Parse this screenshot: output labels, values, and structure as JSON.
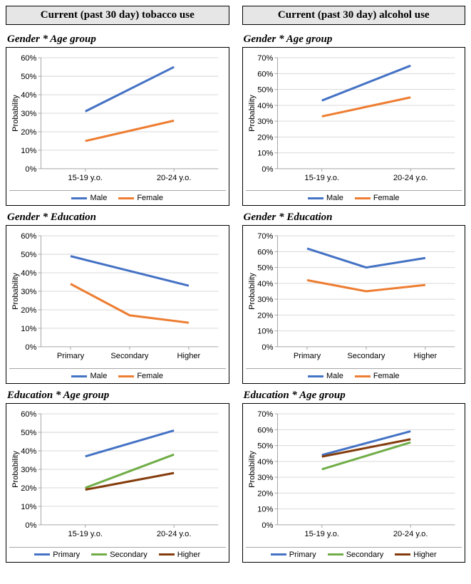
{
  "layout": {
    "columns": [
      "tobacco",
      "alcohol"
    ],
    "rows": [
      "gender_age",
      "gender_edu",
      "edu_age"
    ]
  },
  "headers": {
    "tobacco": "Current (past 30 day) tobacco use",
    "alcohol": "Current (past 30 day) alcohol use"
  },
  "row_titles": {
    "gender_age": "Gender * Age group",
    "gender_edu": "Gender * Education",
    "edu_age": "Education * Age group"
  },
  "axis": {
    "ylabel": "Probability",
    "tick_font": "Arial",
    "tick_fontsize": 11,
    "title_fontsize": 15,
    "grid_color": "#d9d9d9",
    "axis_color": "#a6a6a6"
  },
  "palette": {
    "Male": "#4472c4",
    "Female": "#ed7d31",
    "Primary": "#4472c4",
    "Secondary": "#70ad47",
    "Higher": "#843c0c"
  },
  "line_width": 3,
  "charts": {
    "tobacco_gender_age": {
      "categories": [
        "15-19 y.o.",
        "20-24 y.o."
      ],
      "ylim": [
        0,
        60
      ],
      "ystep": 10,
      "series": [
        {
          "name": "Male",
          "values": [
            31,
            55
          ]
        },
        {
          "name": "Female",
          "values": [
            15,
            26
          ]
        }
      ]
    },
    "alcohol_gender_age": {
      "categories": [
        "15-19 y.o.",
        "20-24 y.o."
      ],
      "ylim": [
        0,
        70
      ],
      "ystep": 10,
      "series": [
        {
          "name": "Male",
          "values": [
            43,
            65
          ]
        },
        {
          "name": "Female",
          "values": [
            33,
            45
          ]
        }
      ]
    },
    "tobacco_gender_edu": {
      "categories": [
        "Primary",
        "Secondary",
        "Higher"
      ],
      "ylim": [
        0,
        60
      ],
      "ystep": 10,
      "series": [
        {
          "name": "Male",
          "values": [
            49,
            41,
            33
          ]
        },
        {
          "name": "Female",
          "values": [
            34,
            17,
            13
          ]
        }
      ]
    },
    "alcohol_gender_edu": {
      "categories": [
        "Primary",
        "Secondary",
        "Higher"
      ],
      "ylim": [
        0,
        70
      ],
      "ystep": 10,
      "series": [
        {
          "name": "Male",
          "values": [
            62,
            50,
            56
          ]
        },
        {
          "name": "Female",
          "values": [
            42,
            35,
            39
          ]
        }
      ]
    },
    "tobacco_edu_age": {
      "categories": [
        "15-19 y.o.",
        "20-24 y.o."
      ],
      "ylim": [
        0,
        60
      ],
      "ystep": 10,
      "series": [
        {
          "name": "Primary",
          "values": [
            37,
            51
          ]
        },
        {
          "name": "Secondary",
          "values": [
            20,
            38
          ]
        },
        {
          "name": "Higher",
          "values": [
            19,
            28
          ]
        }
      ]
    },
    "alcohol_edu_age": {
      "categories": [
        "15-19 y.o.",
        "20-24 y.o."
      ],
      "ylim": [
        0,
        70
      ],
      "ystep": 10,
      "series": [
        {
          "name": "Primary",
          "values": [
            44,
            59
          ]
        },
        {
          "name": "Secondary",
          "values": [
            35,
            52
          ]
        },
        {
          "name": "Higher",
          "values": [
            43,
            54
          ]
        }
      ]
    }
  }
}
